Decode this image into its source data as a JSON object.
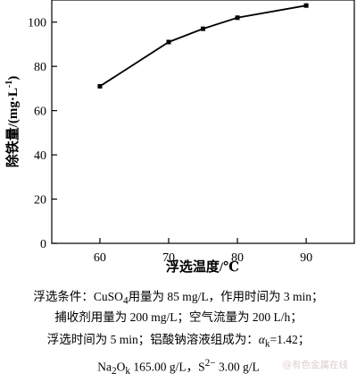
{
  "chart_data": {
    "type": "line",
    "x": [
      60,
      70,
      75,
      80,
      90
    ],
    "y": [
      71,
      91,
      97,
      102,
      107.5
    ],
    "xlabel": "浮选温度/℃",
    "ylabel": "除铁量/(mg·L",
    "ylabel_sup": "-1",
    "ylabel_close": ")",
    "xlim": [
      53,
      97
    ],
    "ylim": [
      0,
      110
    ],
    "xticks": [
      60,
      70,
      80,
      90
    ],
    "yticks": [
      0,
      20,
      40,
      60,
      80,
      100
    ],
    "marker": "square",
    "grid": false,
    "line_color": "#000000"
  },
  "caption": {
    "line1": {
      "prefix": "浮选条件：",
      "formula_main": "CuSO",
      "formula_sub": "4",
      "rest": "用量为 85 mg/L，作用时间为 3 min；"
    },
    "line2": "捕收剂用量为 200 mg/L；空气流量为 200 L/h；",
    "line3": {
      "prefix": "浮选时间为 5 min；铝酸钠溶液组成为：",
      "alpha": "α",
      "alpha_sub": "k",
      "rest": "=1.42；"
    },
    "line4": {
      "na": "Na",
      "na_sub": "2",
      "o": "O",
      "o_sub": "k",
      "value1": " 165.00 g/L，S",
      "s_sup": "2−",
      "value2": " 3.00 g/L"
    }
  },
  "watermark": "@有色金属在线"
}
